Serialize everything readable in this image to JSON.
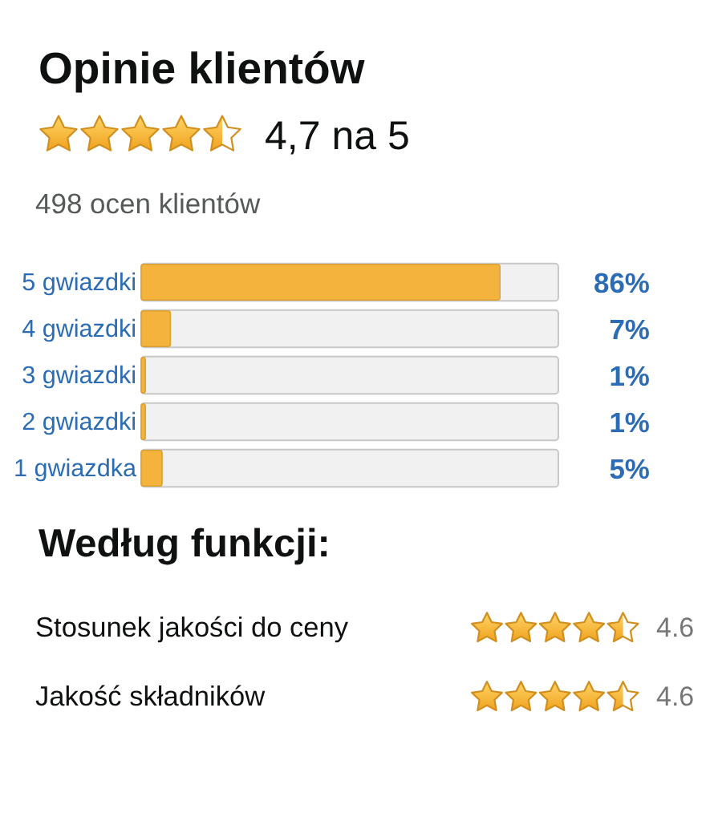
{
  "chart_data": {
    "type": "bar",
    "orientation": "horizontal",
    "title": "Opinie klientów",
    "categories": [
      "5 gwiazdki",
      "4 gwiazdki",
      "3 gwiazdki",
      "2 gwiazdki",
      "1 gwiazdka"
    ],
    "values": [
      86,
      7,
      1,
      1,
      5
    ],
    "value_labels": [
      "86%",
      "7%",
      "1%",
      "1%",
      "5%"
    ],
    "color": "#f3b33d",
    "xlim": [
      0,
      100
    ],
    "tick_labels": "y",
    "annotations": [
      "4,7 na 5",
      "498 ocen klientów",
      "Według funkcji:",
      "Stosunek jakości do ceny",
      "4.6",
      "Jakość składników",
      "4.6"
    ]
  }
}
